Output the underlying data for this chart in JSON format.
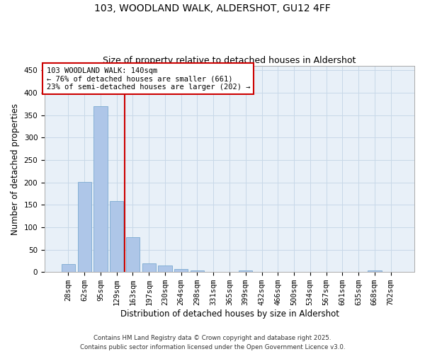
{
  "title_line1": "103, WOODLAND WALK, ALDERSHOT, GU12 4FF",
  "title_line2": "Size of property relative to detached houses in Aldershot",
  "xlabel": "Distribution of detached houses by size in Aldershot",
  "ylabel": "Number of detached properties",
  "categories": [
    "28sqm",
    "62sqm",
    "95sqm",
    "129sqm",
    "163sqm",
    "197sqm",
    "230sqm",
    "264sqm",
    "298sqm",
    "331sqm",
    "365sqm",
    "399sqm",
    "432sqm",
    "466sqm",
    "500sqm",
    "534sqm",
    "567sqm",
    "601sqm",
    "635sqm",
    "668sqm",
    "702sqm"
  ],
  "values": [
    18,
    201,
    370,
    158,
    78,
    20,
    15,
    7,
    4,
    0,
    0,
    3,
    0,
    0,
    0,
    0,
    0,
    0,
    0,
    3,
    0
  ],
  "bar_color": "#aec6e8",
  "bar_edgecolor": "#7aaad0",
  "bar_linewidth": 0.6,
  "vline_x": 3.5,
  "vline_color": "#cc0000",
  "vline_linewidth": 1.5,
  "annotation_text": "103 WOODLAND WALK: 140sqm\n← 76% of detached houses are smaller (661)\n23% of semi-detached houses are larger (202) →",
  "annotation_box_color": "#cc0000",
  "annotation_text_color": "#000000",
  "annotation_fontsize": 7.5,
  "ylim": [
    0,
    460
  ],
  "yticks": [
    0,
    50,
    100,
    150,
    200,
    250,
    300,
    350,
    400,
    450
  ],
  "grid_color": "#c8d8e8",
  "bg_color": "#e8f0f8",
  "footer_line1": "Contains HM Land Registry data © Crown copyright and database right 2025.",
  "footer_line2": "Contains public sector information licensed under the Open Government Licence v3.0.",
  "title_fontsize": 10,
  "subtitle_fontsize": 9,
  "axis_label_fontsize": 8.5,
  "tick_fontsize": 7.5
}
